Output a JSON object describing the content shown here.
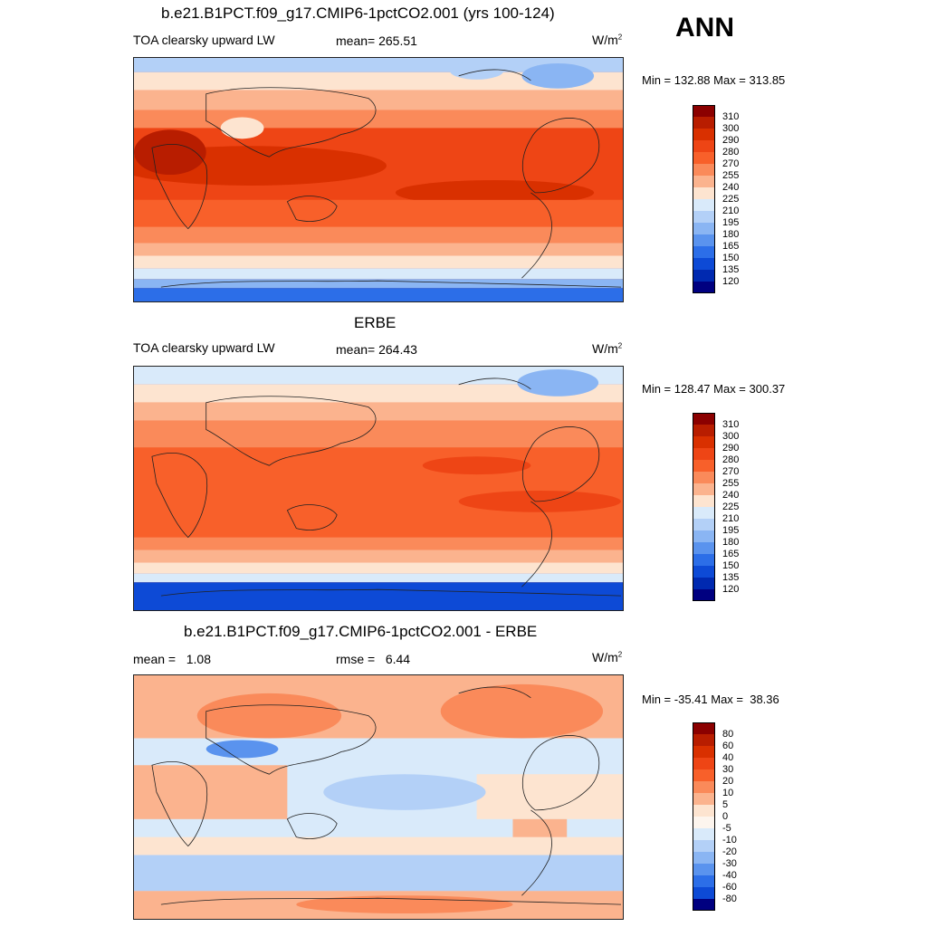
{
  "season": "ANN",
  "panels": [
    {
      "title": "b.e21.B1PCT.f09_g17.CMIP6-1pctCO2.001 (yrs 100-124)",
      "left_label": "TOA clearsky upward LW",
      "center_label": "mean= 265.51",
      "units": "W/m",
      "units_sup": "2",
      "minmax": "Min = 132.88 Max = 313.85"
    },
    {
      "title": "ERBE",
      "left_label": "TOA clearsky upward LW",
      "center_label": "mean= 264.43",
      "units": "W/m",
      "units_sup": "2",
      "minmax": "Min = 128.47 Max = 300.37"
    },
    {
      "title": "b.e21.B1PCT.f09_g17.CMIP6-1pctCO2.001 - ERBE",
      "left_label": "mean =   1.08",
      "center_label": "rmse =   6.44",
      "units": "W/m",
      "units_sup": "2",
      "minmax": "Min = -35.41 Max =  38.36"
    }
  ],
  "colorbar_abs": {
    "levels": [
      "310",
      "300",
      "290",
      "280",
      "270",
      "255",
      "240",
      "225",
      "210",
      "195",
      "180",
      "165",
      "150",
      "135",
      "120"
    ],
    "colors": [
      "#8b0000",
      "#b81d00",
      "#d93000",
      "#ee4515",
      "#f8602a",
      "#fa8a5a",
      "#fbb38e",
      "#fde4d0",
      "#d9eafa",
      "#b3d0f7",
      "#8ab5f3",
      "#5a93ee",
      "#2c6ee8",
      "#0d4ad6",
      "#0029b0",
      "#000080"
    ]
  },
  "colorbar_diff": {
    "levels": [
      "80",
      "60",
      "40",
      "30",
      "20",
      "10",
      "5",
      "0",
      "-5",
      "-10",
      "-20",
      "-30",
      "-40",
      "-60",
      "-80"
    ],
    "colors": [
      "#8b0000",
      "#b81d00",
      "#d93000",
      "#ee4515",
      "#f8602a",
      "#fa8a5a",
      "#fbb38e",
      "#fde4d0",
      "#fdf5ee",
      "#d9eafa",
      "#b3d0f7",
      "#8ab5f3",
      "#5a93ee",
      "#2c6ee8",
      "#0d4ad6",
      "#000080"
    ]
  },
  "chart_data": [
    {
      "type": "heatmap",
      "title": "b.e21.B1PCT.f09_g17.CMIP6-1pctCO2.001 (yrs 100-124)",
      "variable": "TOA clearsky upward LW",
      "units": "W/m2",
      "mean": 265.51,
      "min": 132.88,
      "max": 313.85,
      "levels": [
        120,
        135,
        150,
        165,
        180,
        195,
        210,
        225,
        240,
        255,
        270,
        280,
        290,
        300,
        310
      ],
      "projection": "global cylindrical, Pacific-centered"
    },
    {
      "type": "heatmap",
      "title": "ERBE",
      "variable": "TOA clearsky upward LW",
      "units": "W/m2",
      "mean": 264.43,
      "min": 128.47,
      "max": 300.37,
      "levels": [
        120,
        135,
        150,
        165,
        180,
        195,
        210,
        225,
        240,
        255,
        270,
        280,
        290,
        300,
        310
      ],
      "projection": "global cylindrical, Pacific-centered"
    },
    {
      "type": "heatmap",
      "title": "b.e21.B1PCT.f09_g17.CMIP6-1pctCO2.001 - ERBE",
      "units": "W/m2",
      "mean": 1.08,
      "rmse": 6.44,
      "min": -35.41,
      "max": 38.36,
      "levels": [
        -80,
        -60,
        -40,
        -30,
        -20,
        -10,
        -5,
        0,
        5,
        10,
        20,
        30,
        40,
        60,
        80
      ],
      "projection": "global cylindrical, Pacific-centered"
    }
  ]
}
